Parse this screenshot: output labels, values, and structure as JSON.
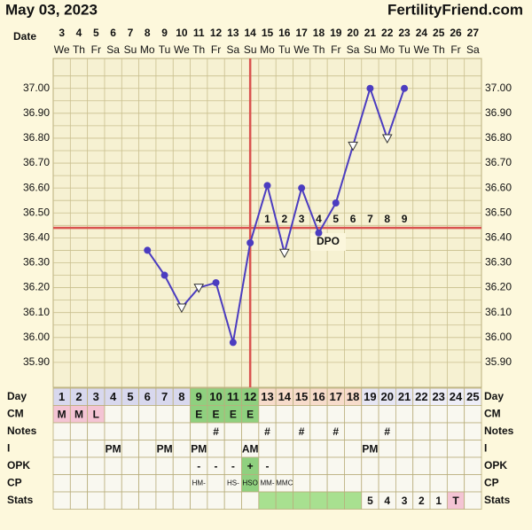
{
  "header": {
    "date": "May 03, 2023",
    "site": "FertilityFriend.com",
    "date_label": "Date"
  },
  "chart_data": {
    "type": "line",
    "categories": [
      3,
      4,
      5,
      6,
      7,
      8,
      9,
      10,
      11,
      12,
      13,
      14,
      15,
      16,
      17,
      18,
      19,
      20,
      21,
      22,
      23,
      24,
      25,
      26,
      27
    ],
    "weekdays": [
      "We",
      "Th",
      "Fr",
      "Sa",
      "Su",
      "Mo",
      "Tu",
      "We",
      "Th",
      "Fr",
      "Sa",
      "Su",
      "Mo",
      "Tu",
      "We",
      "Th",
      "Fr",
      "Sa",
      "Su",
      "Mo",
      "Tu",
      "We",
      "Th",
      "Fr",
      "Sa"
    ],
    "series": [
      {
        "name": "Temperature",
        "color": "#4b3cc0",
        "values": [
          null,
          null,
          null,
          null,
          null,
          36.35,
          36.25,
          36.12,
          36.2,
          36.22,
          35.98,
          36.38,
          36.61,
          36.34,
          36.6,
          36.42,
          36.54,
          36.77,
          37.0,
          36.8,
          37.0,
          null,
          null,
          null,
          null
        ],
        "markers": [
          null,
          null,
          null,
          null,
          null,
          "circle",
          "circle",
          "triangle",
          "triangle",
          "circle",
          "circle",
          "circle",
          "circle",
          "triangle",
          "circle",
          "circle",
          "circle",
          "triangle",
          "circle",
          "triangle",
          "circle",
          null,
          null,
          null,
          null
        ]
      }
    ],
    "ylim": [
      35.8,
      37.12
    ],
    "yticks": [
      {
        "value": 35.9,
        "label": "35.90"
      },
      {
        "value": 36.0,
        "label": "36.00"
      },
      {
        "value": 36.1,
        "label": "36.10"
      },
      {
        "value": 36.2,
        "label": "36.20"
      },
      {
        "value": 36.3,
        "label": "36.30"
      },
      {
        "value": 36.4,
        "label": "36.40"
      },
      {
        "value": 36.5,
        "label": "36.50"
      },
      {
        "value": 36.6,
        "label": "36.60"
      },
      {
        "value": 36.7,
        "label": "36.70"
      },
      {
        "value": 36.8,
        "label": "36.80"
      },
      {
        "value": 36.9,
        "label": "36.90"
      },
      {
        "value": 37.0,
        "label": "37.00"
      }
    ],
    "grid": true,
    "coverline": {
      "value": 36.44,
      "color": "#d9534f"
    },
    "ovulation_index": 11,
    "dpo": {
      "label": "DPO",
      "start_index": 12,
      "values": [
        1,
        2,
        3,
        4,
        5,
        6,
        7,
        8,
        9
      ]
    }
  },
  "table": {
    "rows": [
      {
        "label": "Day",
        "cells": [
          "1",
          "2",
          "3",
          "4",
          "5",
          "6",
          "7",
          "8",
          "9",
          "10",
          "11",
          "12",
          "13",
          "14",
          "15",
          "16",
          "17",
          "18",
          "19",
          "20",
          "21",
          "22",
          "23",
          "24",
          "25"
        ],
        "fills": [
          "#d8d8ee",
          "#d8d8ee",
          "#d8d8ee",
          "#d8d8ee",
          "#d8d8ee",
          "#d8d8ee",
          "#d8d8ee",
          "#d8d8ee",
          "#8fd07f",
          "#8fd07f",
          "#8fd07f",
          "#8fd07f",
          "#f7dccb",
          "#f7dccb",
          "#f7dccb",
          "#f7dccb",
          "#f7dccb",
          "#f7dccb",
          "#e6e6f4",
          "#e6e6f4",
          "#e6e6f4",
          "#eeeef8",
          "#eeeef8",
          "#eeeef8",
          "#eeeef8"
        ]
      },
      {
        "label": "CM",
        "cells": [
          "M",
          "M",
          "L",
          null,
          null,
          null,
          null,
          null,
          "E",
          "E",
          "E",
          "E",
          null,
          null,
          null,
          null,
          null,
          null,
          null,
          null,
          null,
          null,
          null,
          null,
          null
        ],
        "fills": [
          "#f4c4d4",
          "#f4c4d4",
          "#f4c4d4",
          null,
          null,
          null,
          null,
          null,
          "#8fd07f",
          "#8fd07f",
          "#8fd07f",
          "#8fd07f",
          null,
          null,
          null,
          null,
          null,
          null,
          null,
          null,
          null,
          null,
          null,
          null,
          null
        ]
      },
      {
        "label": "Notes",
        "cells": [
          null,
          null,
          null,
          null,
          null,
          null,
          null,
          null,
          null,
          "#",
          null,
          null,
          "#",
          null,
          "#",
          null,
          "#",
          null,
          null,
          "#",
          null,
          null,
          null,
          null,
          null
        ],
        "fills": []
      },
      {
        "label": "I",
        "cells": [
          null,
          null,
          null,
          "PM",
          null,
          null,
          "PM",
          null,
          "PM",
          null,
          null,
          "AM",
          null,
          null,
          null,
          null,
          null,
          null,
          "PM",
          null,
          null,
          null,
          null,
          null,
          null
        ],
        "fills": []
      },
      {
        "label": "OPK",
        "cells": [
          null,
          null,
          null,
          null,
          null,
          null,
          null,
          null,
          "-",
          "-",
          "-",
          "+",
          "-",
          null,
          null,
          null,
          null,
          null,
          null,
          null,
          null,
          null,
          null,
          null,
          null
        ],
        "fills": [
          null,
          null,
          null,
          null,
          null,
          null,
          null,
          null,
          null,
          null,
          null,
          "#8fd07f"
        ]
      },
      {
        "label": "CP",
        "cells": [
          null,
          null,
          null,
          null,
          null,
          null,
          null,
          null,
          "HM-",
          null,
          "HS-",
          "HSO",
          "MM-",
          "MMC",
          null,
          null,
          null,
          null,
          null,
          null,
          null,
          null,
          null,
          null,
          null
        ],
        "fills": [
          null,
          null,
          null,
          null,
          null,
          null,
          null,
          null,
          null,
          null,
          null,
          "#8fd07f"
        ]
      },
      {
        "label": "Stats",
        "cells": [
          null,
          null,
          null,
          null,
          null,
          null,
          null,
          null,
          null,
          null,
          null,
          null,
          null,
          null,
          null,
          null,
          null,
          null,
          "5",
          "4",
          "3",
          "2",
          "1",
          "T",
          null
        ],
        "fills": [
          null,
          null,
          null,
          null,
          null,
          null,
          null,
          null,
          null,
          null,
          null,
          null,
          "#a8e090",
          "#a8e090",
          "#a8e090",
          "#a8e090",
          "#a8e090",
          "#a8e090",
          null,
          null,
          null,
          null,
          null,
          "#f4c4d4",
          null
        ]
      }
    ]
  }
}
